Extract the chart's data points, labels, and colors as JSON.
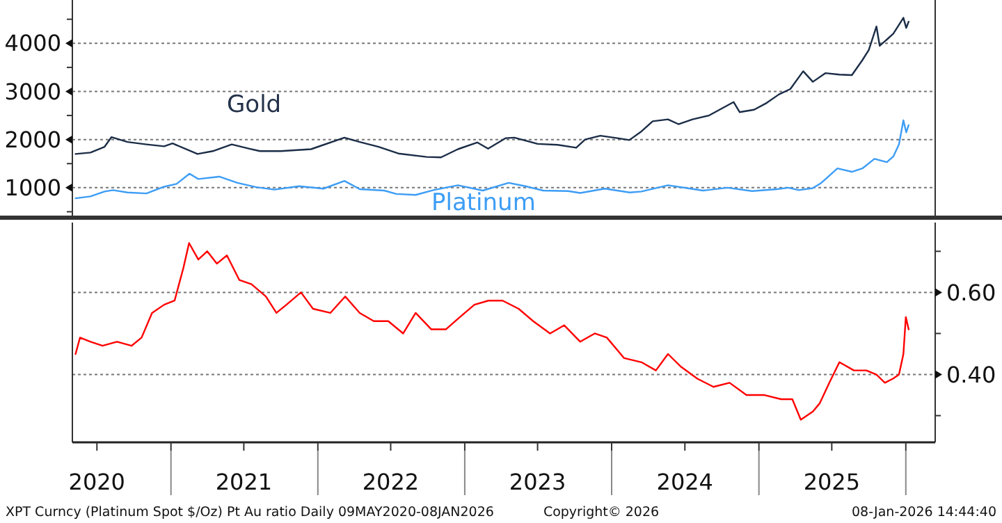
{
  "chart_data": [
    {
      "type": "line",
      "xlim": [
        "2020-05-01",
        "2026-03-15"
      ],
      "ylim": [
        420,
        4900
      ],
      "yticks": [
        {
          "value": 500,
          "label": null
        },
        1000,
        {
          "value": 1500,
          "label": null
        },
        2000,
        {
          "value": 2500,
          "label": null
        },
        3000,
        {
          "value": 3500,
          "label": null
        },
        4000,
        {
          "value": 4500,
          "label": null
        }
      ],
      "grid": "y",
      "tick_labels": "y",
      "line_style": "solid",
      "series": [
        {
          "name": "Gold",
          "color": "#1b2d47",
          "x": [
            "2020-05-09",
            "2020-06-15",
            "2020-07-20",
            "2020-08-06",
            "2020-09-15",
            "2020-11-01",
            "2020-12-15",
            "2021-01-05",
            "2021-03-08",
            "2021-04-15",
            "2021-06-01",
            "2021-07-15",
            "2021-08-10",
            "2021-10-01",
            "2021-12-15",
            "2022-03-08",
            "2022-04-15",
            "2022-06-01",
            "2022-07-20",
            "2022-09-28",
            "2022-11-03",
            "2022-12-15",
            "2023-02-01",
            "2023-02-28",
            "2023-04-13",
            "2023-05-04",
            "2023-07-01",
            "2023-08-20",
            "2023-10-05",
            "2023-10-27",
            "2023-12-04",
            "2024-01-15",
            "2024-02-14",
            "2024-03-15",
            "2024-04-12",
            "2024-05-20",
            "2024-06-15",
            "2024-07-20",
            "2024-08-30",
            "2024-10-30",
            "2024-11-14",
            "2024-12-20",
            "2025-01-20",
            "2025-02-20",
            "2025-03-20",
            "2025-04-21",
            "2025-05-15",
            "2025-06-15",
            "2025-07-20",
            "2025-08-20",
            "2025-09-15",
            "2025-10-01",
            "2025-10-20",
            "2025-10-28",
            "2025-11-15",
            "2025-12-01",
            "2025-12-26",
            "2026-01-02",
            "2026-01-08"
          ],
          "values": [
            1700,
            1730,
            1850,
            2050,
            1950,
            1900,
            1860,
            1920,
            1700,
            1760,
            1900,
            1810,
            1760,
            1760,
            1800,
            2040,
            1950,
            1850,
            1710,
            1640,
            1630,
            1800,
            1940,
            1810,
            2030,
            2040,
            1910,
            1890,
            1830,
            2000,
            2080,
            2030,
            1990,
            2170,
            2380,
            2420,
            2320,
            2420,
            2500,
            2780,
            2570,
            2620,
            2760,
            2940,
            3050,
            3420,
            3200,
            3380,
            3350,
            3340,
            3650,
            3860,
            4350,
            3950,
            4080,
            4200,
            4530,
            4320,
            4450
          ]
        },
        {
          "name": "Platinum",
          "color": "#3d9df5",
          "x": [
            "2020-05-09",
            "2020-06-15",
            "2020-07-20",
            "2020-08-10",
            "2020-09-15",
            "2020-11-01",
            "2020-12-15",
            "2021-01-15",
            "2021-02-16",
            "2021-03-10",
            "2021-05-01",
            "2021-06-15",
            "2021-08-01",
            "2021-09-15",
            "2021-11-15",
            "2022-01-15",
            "2022-03-08",
            "2022-04-15",
            "2022-06-15",
            "2022-07-15",
            "2022-09-01",
            "2022-10-15",
            "2022-12-15",
            "2023-02-15",
            "2023-04-20",
            "2023-06-01",
            "2023-07-15",
            "2023-09-15",
            "2023-10-15",
            "2023-12-15",
            "2024-02-15",
            "2024-03-15",
            "2024-05-20",
            "2024-07-15",
            "2024-08-15",
            "2024-10-15",
            "2024-12-15",
            "2025-02-15",
            "2025-03-15",
            "2025-04-10",
            "2025-05-15",
            "2025-06-05",
            "2025-07-15",
            "2025-08-20",
            "2025-09-15",
            "2025-10-15",
            "2025-11-15",
            "2025-12-01",
            "2025-12-15",
            "2025-12-26",
            "2026-01-02",
            "2026-01-08"
          ],
          "values": [
            780,
            820,
            920,
            950,
            900,
            880,
            1020,
            1080,
            1290,
            1180,
            1230,
            1100,
            1010,
            960,
            1030,
            980,
            1140,
            970,
            940,
            870,
            850,
            950,
            1050,
            940,
            1100,
            1030,
            940,
            930,
            890,
            980,
            900,
            920,
            1050,
            980,
            940,
            1000,
            930,
            970,
            1000,
            950,
            990,
            1100,
            1400,
            1330,
            1400,
            1600,
            1530,
            1650,
            1900,
            2400,
            2150,
            2300
          ]
        }
      ]
    },
    {
      "type": "line",
      "xlim": [
        "2020-05-01",
        "2026-03-15"
      ],
      "ylim": [
        0.235,
        0.77
      ],
      "yticks": [
        {
          "value": 0.3,
          "label": null
        },
        {
          "value": 0.4,
          "label": "0.40"
        },
        {
          "value": 0.5,
          "label": null
        },
        {
          "value": 0.6,
          "label": "0.60"
        },
        {
          "value": 0.7,
          "label": null
        }
      ],
      "xticks": [
        {
          "value": "2020-07-01",
          "label": "2020"
        },
        {
          "value": "2021-01-01",
          "label": null
        },
        {
          "value": "2021-07-01",
          "label": "2021"
        },
        {
          "value": "2022-01-01",
          "label": null
        },
        {
          "value": "2022-07-01",
          "label": "2022"
        },
        {
          "value": "2023-01-01",
          "label": null
        },
        {
          "value": "2023-07-01",
          "label": "2023"
        },
        {
          "value": "2024-01-01",
          "label": null
        },
        {
          "value": "2024-07-01",
          "label": "2024"
        },
        {
          "value": "2025-01-01",
          "label": null
        },
        {
          "value": "2025-07-01",
          "label": "2025"
        },
        {
          "value": "2026-01-01",
          "label": null
        }
      ],
      "grid": "y",
      "line_style": "solid",
      "color": "#ff0000",
      "x": [
        "2020-05-09",
        "2020-05-20",
        "2020-06-15",
        "2020-07-15",
        "2020-08-20",
        "2020-09-25",
        "2020-10-20",
        "2020-11-15",
        "2020-12-15",
        "2021-01-10",
        "2021-02-01",
        "2021-02-15",
        "2021-03-10",
        "2021-04-01",
        "2021-04-25",
        "2021-05-20",
        "2021-06-20",
        "2021-07-20",
        "2021-08-25",
        "2021-09-20",
        "2021-10-15",
        "2021-11-20",
        "2021-12-20",
        "2022-02-01",
        "2022-03-10",
        "2022-04-15",
        "2022-05-20",
        "2022-06-25",
        "2022-08-01",
        "2022-09-01",
        "2022-10-10",
        "2022-11-15",
        "2022-12-20",
        "2023-01-25",
        "2023-03-01",
        "2023-04-05",
        "2023-05-15",
        "2023-06-20",
        "2023-08-01",
        "2023-09-05",
        "2023-10-15",
        "2023-11-20",
        "2023-12-20",
        "2024-02-01",
        "2024-03-15",
        "2024-04-20",
        "2024-05-20",
        "2024-06-20",
        "2024-08-01",
        "2024-09-10",
        "2024-10-20",
        "2024-12-01",
        "2025-01-15",
        "2025-02-25",
        "2025-03-25",
        "2025-04-15",
        "2025-05-15",
        "2025-06-01",
        "2025-06-25",
        "2025-07-20",
        "2025-08-25",
        "2025-09-25",
        "2025-10-20",
        "2025-11-10",
        "2025-11-30",
        "2025-12-15",
        "2025-12-26",
        "2026-01-01",
        "2026-01-08"
      ],
      "values": [
        0.45,
        0.49,
        0.48,
        0.47,
        0.48,
        0.47,
        0.49,
        0.55,
        0.57,
        0.58,
        0.66,
        0.72,
        0.68,
        0.7,
        0.67,
        0.69,
        0.63,
        0.62,
        0.59,
        0.55,
        0.57,
        0.6,
        0.56,
        0.55,
        0.59,
        0.55,
        0.53,
        0.53,
        0.5,
        0.55,
        0.51,
        0.51,
        0.54,
        0.57,
        0.58,
        0.58,
        0.56,
        0.53,
        0.5,
        0.52,
        0.48,
        0.5,
        0.49,
        0.44,
        0.43,
        0.41,
        0.45,
        0.42,
        0.39,
        0.37,
        0.38,
        0.35,
        0.35,
        0.34,
        0.34,
        0.29,
        0.31,
        0.33,
        0.38,
        0.43,
        0.41,
        0.41,
        0.4,
        0.38,
        0.39,
        0.4,
        0.45,
        0.54,
        0.51
      ],
      "annotations": [
        "XPT Curncy (Platinum Spot  $/Oz) Pt Au ratio Daily 09MAY2020-08JAN2026",
        "Copyright© 2026",
        "08-Jan-2026 14:44:40"
      ]
    }
  ]
}
